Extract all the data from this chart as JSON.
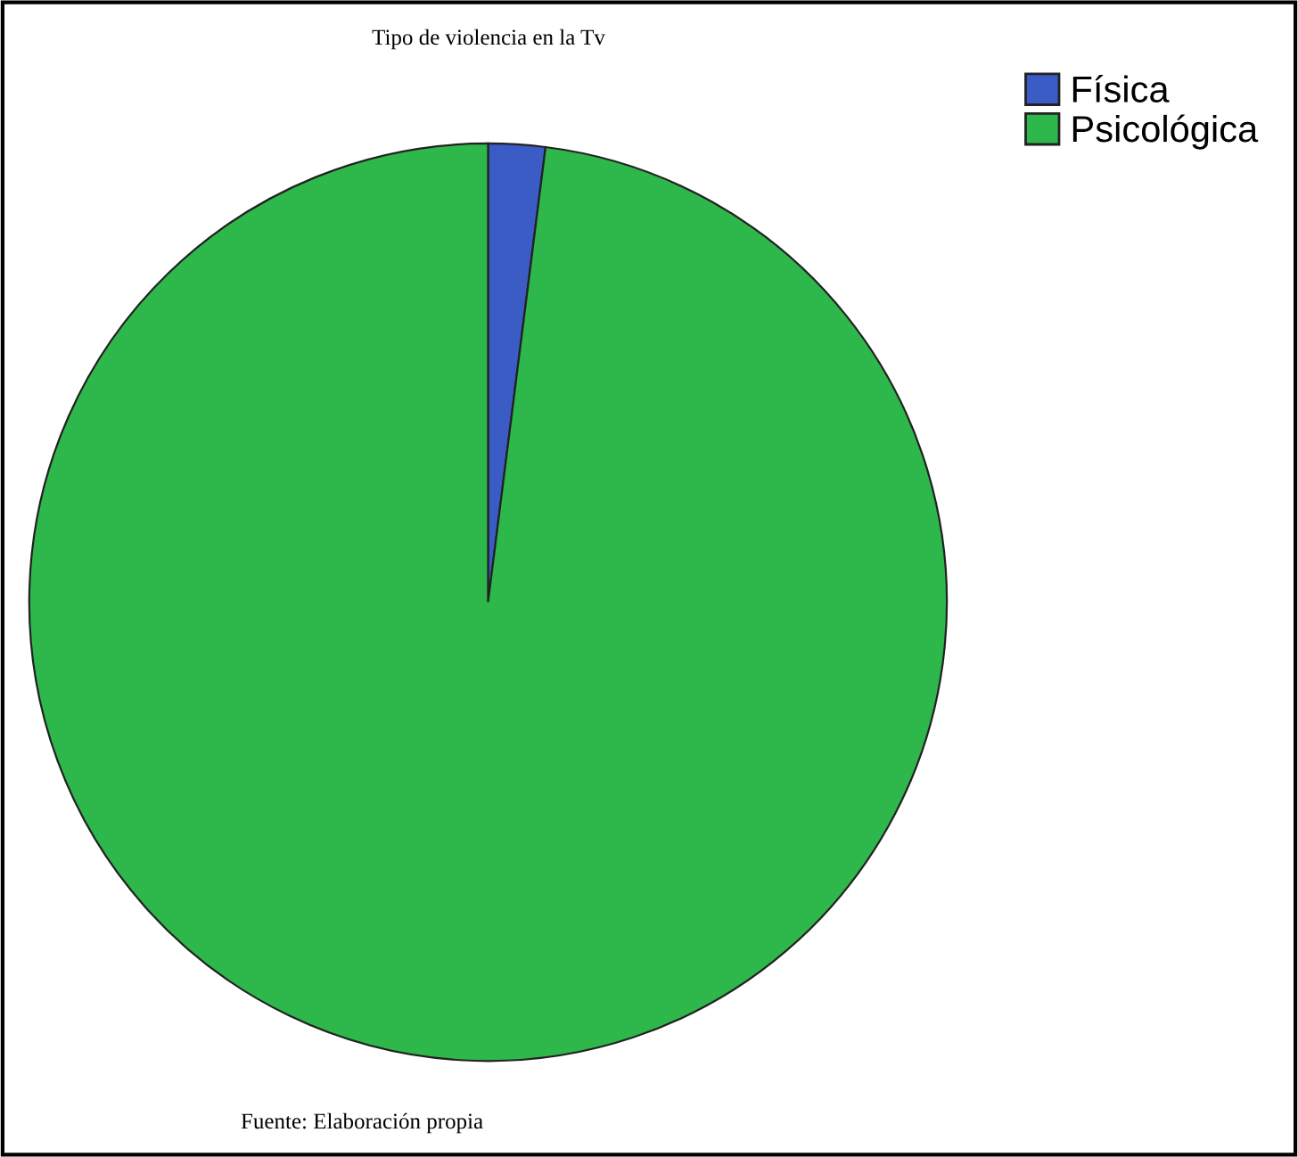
{
  "chart_data": {
    "type": "pie",
    "title": "Tipo de violencia en la Tv",
    "categories": [
      "Física",
      "Psicológica"
    ],
    "values": [
      2,
      98
    ],
    "colors": [
      "#3a5cc4",
      "#2eb84b"
    ],
    "legend": "top right",
    "annotations": [
      "Fuente: Elaboración propia"
    ]
  }
}
